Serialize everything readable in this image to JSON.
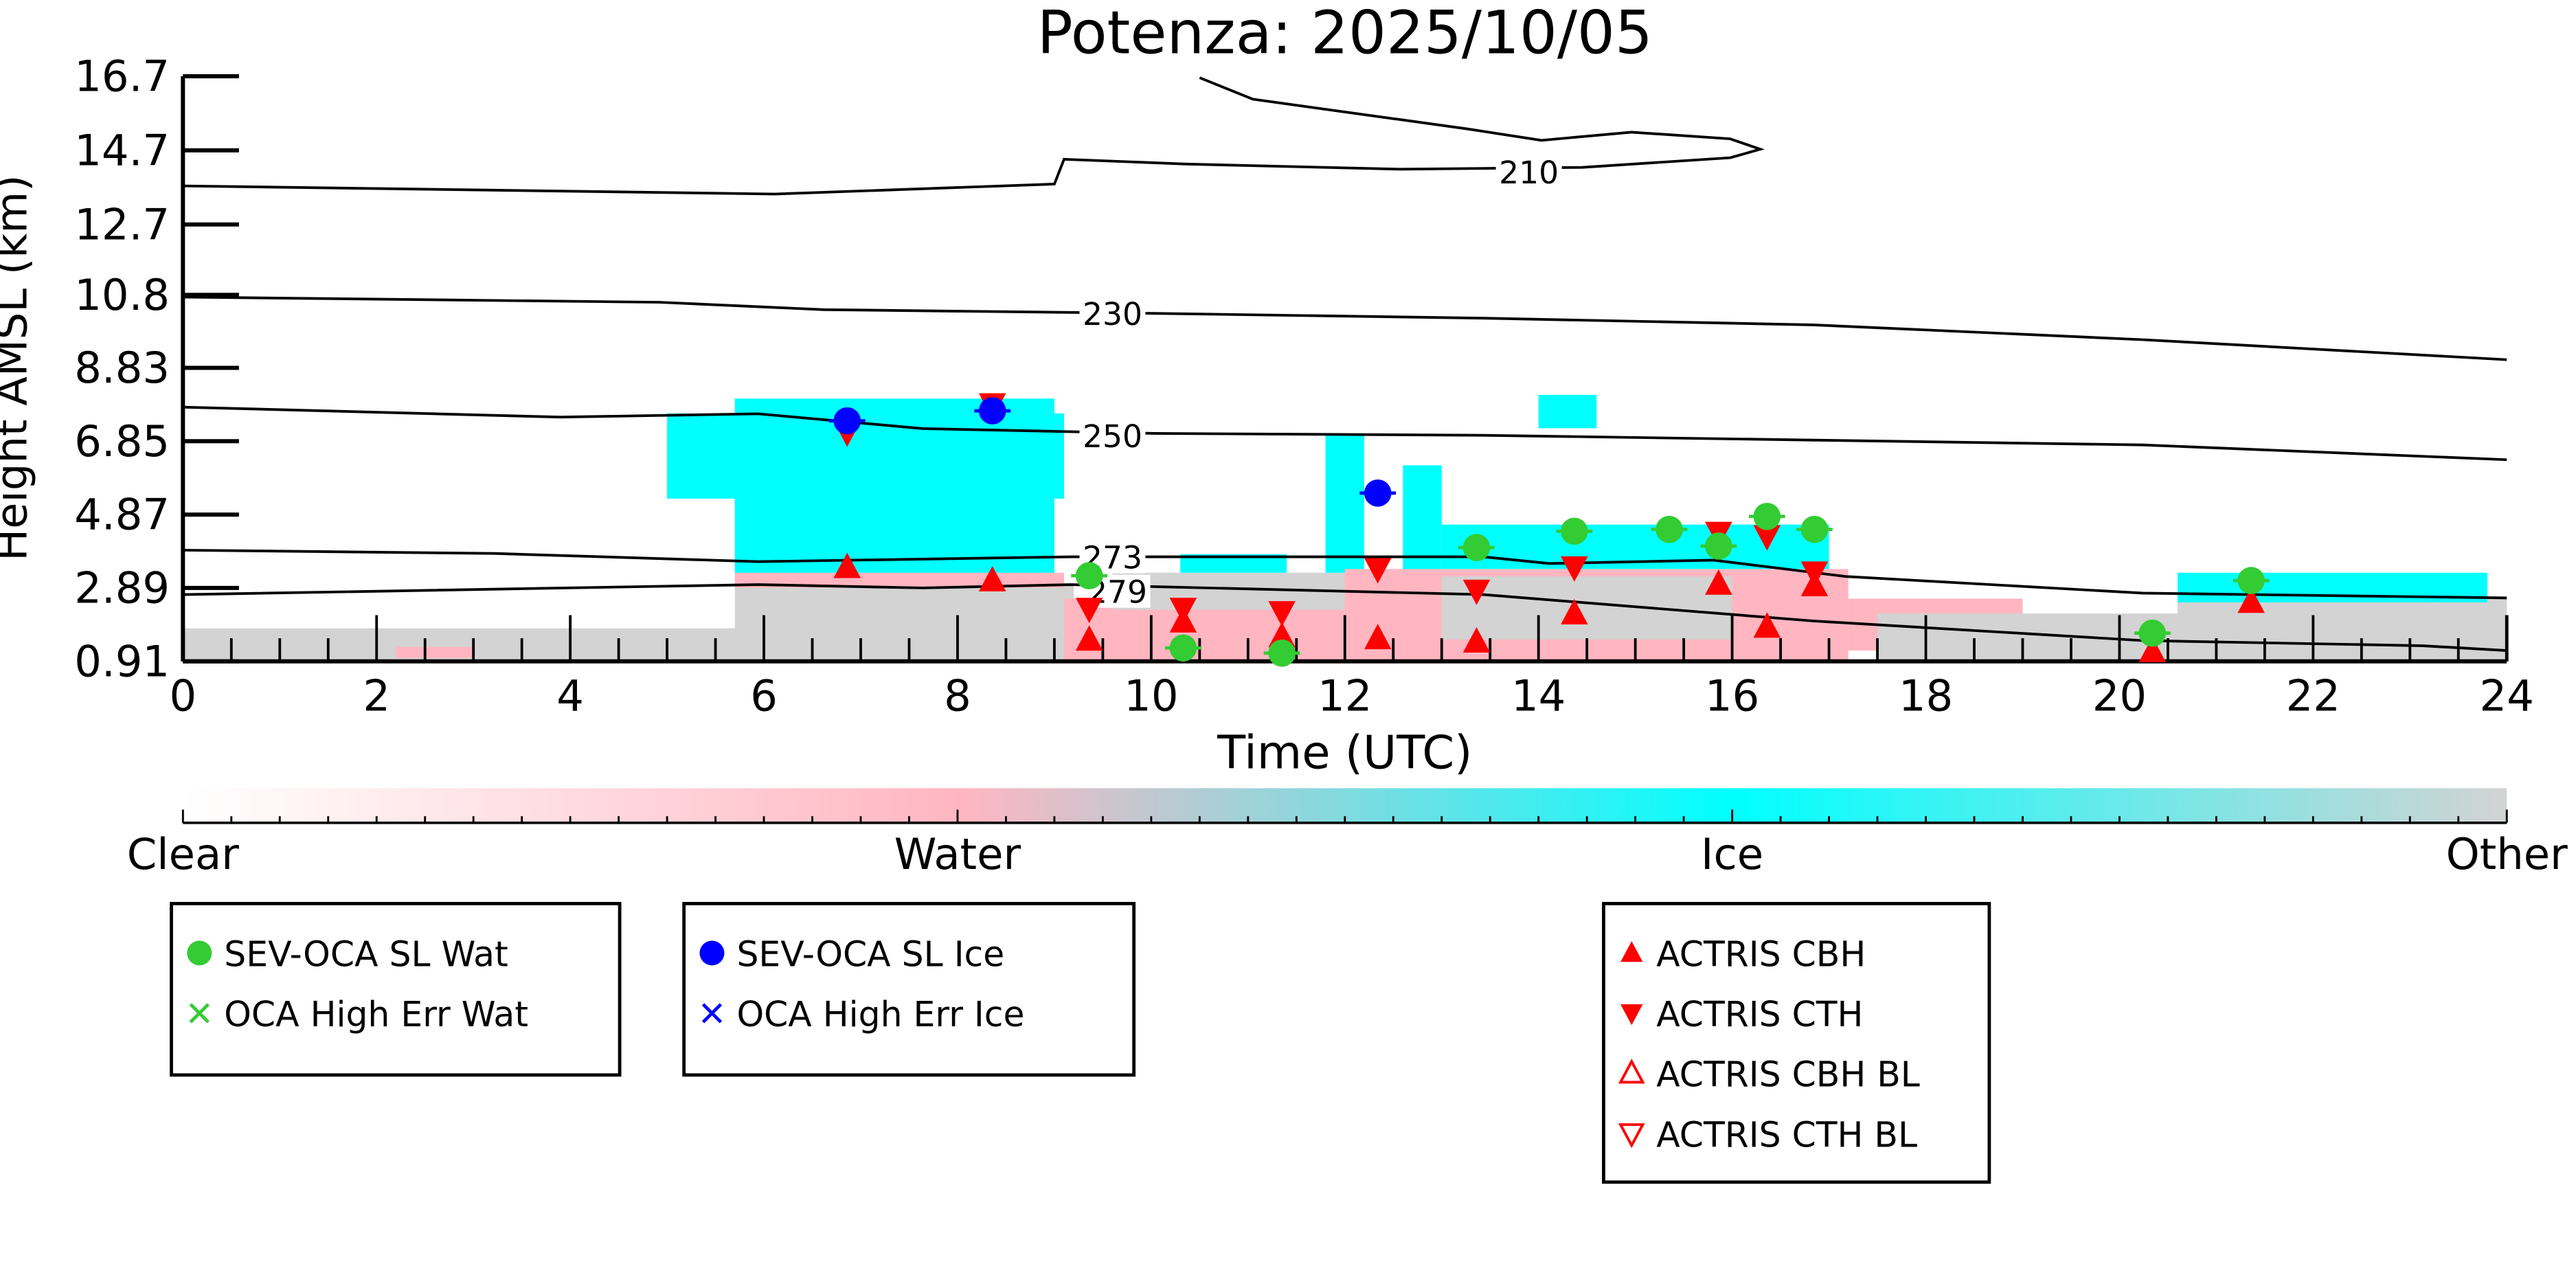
{
  "chart_data": {
    "type": "heatmap",
    "title": "Potenza: 2025/10/05",
    "xlabel": "Time (UTC)",
    "ylabel": "Height AMSL (km)",
    "xlim": [
      0,
      24
    ],
    "ylim": [
      0.91,
      16.7
    ],
    "xticks": [
      0,
      2,
      4,
      6,
      8,
      10,
      12,
      14,
      16,
      18,
      20,
      22,
      24
    ],
    "yticks": [
      "0.91",
      "2.89",
      "4.87",
      "6.85",
      "8.83",
      "10.8",
      "12.7",
      "14.7",
      "16.7"
    ],
    "colors": {
      "clear": "#ffffff",
      "water": "#ffb6c1",
      "ice": "#00ffff",
      "other": "#d3d3d3",
      "sev_wat": "#33cc33",
      "sev_ice": "#0000ff",
      "actris": "#ff0000"
    },
    "colorbar": {
      "labels": [
        "Clear",
        "Water",
        "Ice",
        "Other"
      ]
    },
    "cloud_regions": [
      {
        "class": "other",
        "t": [
          0,
          5.9
        ],
        "h": [
          0.91,
          1.8
        ]
      },
      {
        "class": "water",
        "t": [
          2.2,
          3.0
        ],
        "h": [
          1.0,
          1.3
        ]
      },
      {
        "class": "other",
        "t": [
          5.7,
          9.2
        ],
        "h": [
          0.91,
          3.0
        ]
      },
      {
        "class": "ice",
        "t": [
          5.0,
          9.1
        ],
        "h": [
          5.3,
          7.6
        ]
      },
      {
        "class": "ice",
        "t": [
          5.7,
          9.0
        ],
        "h": [
          3.0,
          8.0
        ]
      },
      {
        "class": "water",
        "t": [
          5.7,
          9.1
        ],
        "h": [
          2.9,
          3.3
        ]
      },
      {
        "class": "water",
        "t": [
          9.1,
          12.0
        ],
        "h": [
          0.91,
          2.6
        ]
      },
      {
        "class": "other",
        "t": [
          9.6,
          13.0
        ],
        "h": [
          2.3,
          3.3
        ]
      },
      {
        "class": "ice",
        "t": [
          10.3,
          11.4
        ],
        "h": [
          3.3,
          3.8
        ]
      },
      {
        "class": "ice",
        "t": [
          11.8,
          12.2
        ],
        "h": [
          3.3,
          7.0
        ]
      },
      {
        "class": "ice",
        "t": [
          12.6,
          13.0
        ],
        "h": [
          3.2,
          6.2
        ]
      },
      {
        "class": "water",
        "t": [
          12.0,
          17.2
        ],
        "h": [
          0.91,
          3.4
        ]
      },
      {
        "class": "other",
        "t": [
          13.0,
          16.0
        ],
        "h": [
          1.5,
          3.2
        ]
      },
      {
        "class": "ice",
        "t": [
          13.0,
          17.0
        ],
        "h": [
          3.4,
          4.6
        ]
      },
      {
        "class": "ice",
        "t": [
          14.0,
          14.6
        ],
        "h": [
          7.2,
          8.1
        ]
      },
      {
        "class": "water",
        "t": [
          17.2,
          19.0
        ],
        "h": [
          1.2,
          2.6
        ]
      },
      {
        "class": "other",
        "t": [
          17.5,
          20.8
        ],
        "h": [
          0.91,
          2.2
        ]
      },
      {
        "class": "other",
        "t": [
          20.6,
          24.0
        ],
        "h": [
          0.91,
          2.6
        ]
      },
      {
        "class": "ice",
        "t": [
          20.6,
          23.8
        ],
        "h": [
          2.5,
          3.3
        ]
      }
    ],
    "contours": [
      {
        "level": "210",
        "label_at": [
          13.9,
          14.12
        ],
        "points": [
          [
            0,
            13.74
          ],
          [
            6.11,
            13.52
          ],
          [
            9.0,
            13.79
          ],
          [
            9.1,
            14.46
          ],
          [
            10.36,
            14.33
          ],
          [
            12.58,
            14.19
          ],
          [
            14.45,
            14.24
          ],
          [
            15.98,
            14.5
          ],
          [
            16.29,
            14.73
          ],
          [
            15.98,
            15.01
          ],
          [
            14.96,
            15.19
          ],
          [
            14.03,
            14.97
          ],
          [
            13.26,
            15.28
          ],
          [
            11.05,
            16.08
          ],
          [
            10.5,
            16.66
          ]
        ]
      },
      {
        "level": "230",
        "label_at": [
          9.6,
          10.3
        ],
        "points": [
          [
            0,
            10.74
          ],
          [
            4.92,
            10.6
          ],
          [
            6.62,
            10.4
          ],
          [
            10.03,
            10.3
          ],
          [
            13.43,
            10.17
          ],
          [
            16.83,
            9.99
          ],
          [
            20.24,
            9.59
          ],
          [
            24,
            9.05
          ]
        ]
      },
      {
        "level": "250",
        "label_at": [
          9.6,
          7.0
        ],
        "points": [
          [
            0,
            7.77
          ],
          [
            3.9,
            7.5
          ],
          [
            5.94,
            7.59
          ],
          [
            7.64,
            7.19
          ],
          [
            10.03,
            7.06
          ],
          [
            13.43,
            7.01
          ],
          [
            16.83,
            6.88
          ],
          [
            20.24,
            6.75
          ],
          [
            24,
            6.35
          ]
        ]
      },
      {
        "level": "273",
        "label_at": [
          9.6,
          3.73
        ],
        "points": [
          [
            0,
            3.91
          ],
          [
            3.22,
            3.82
          ],
          [
            5.94,
            3.6
          ],
          [
            9.17,
            3.73
          ],
          [
            13.43,
            3.73
          ],
          [
            14.11,
            3.55
          ],
          [
            15.81,
            3.64
          ],
          [
            17.17,
            3.2
          ],
          [
            20.24,
            2.75
          ],
          [
            24,
            2.62
          ]
        ]
      },
      {
        "level": "279",
        "label_at": [
          9.65,
          2.8
        ],
        "points": [
          [
            0,
            2.71
          ],
          [
            5.94,
            2.98
          ],
          [
            7.64,
            2.89
          ],
          [
            9.17,
            2.98
          ],
          [
            13.43,
            2.71
          ],
          [
            16.83,
            2.0
          ],
          [
            20.24,
            1.47
          ],
          [
            23.13,
            1.33
          ],
          [
            24,
            1.2
          ]
        ]
      }
    ],
    "series": [
      {
        "name": "SEV-OCA SL Wat",
        "marker": "circle",
        "color": "#33cc33",
        "points": [
          [
            9.36,
            3.22
          ],
          [
            10.33,
            1.27
          ],
          [
            11.35,
            1.13
          ],
          [
            13.36,
            3.98
          ],
          [
            14.37,
            4.42
          ],
          [
            15.35,
            4.47
          ],
          [
            15.86,
            4.02
          ],
          [
            16.36,
            4.82
          ],
          [
            16.85,
            4.47
          ],
          [
            20.34,
            1.67
          ],
          [
            21.36,
            3.09
          ]
        ]
      },
      {
        "name": "OCA High Err Wat",
        "marker": "x",
        "color": "#33cc33",
        "points": []
      },
      {
        "name": "SEV-OCA SL Ice",
        "marker": "circle",
        "color": "#0000ff",
        "points": [
          [
            6.86,
            7.4
          ],
          [
            8.36,
            7.67
          ],
          [
            12.34,
            5.45
          ]
        ]
      },
      {
        "name": "OCA High Err Ice",
        "marker": "x",
        "color": "#0000ff",
        "points": []
      },
      {
        "name": "ACTRIS CBH",
        "marker": "triangle-up",
        "color": "#ff0000",
        "points": [
          [
            6.86,
            3.45
          ],
          [
            8.36,
            3.09
          ],
          [
            9.36,
            1.49
          ],
          [
            10.33,
            1.98
          ],
          [
            11.35,
            1.58
          ],
          [
            12.34,
            1.53
          ],
          [
            13.36,
            1.44
          ],
          [
            14.37,
            2.2
          ],
          [
            15.86,
            3.0
          ],
          [
            16.36,
            1.84
          ],
          [
            16.85,
            2.96
          ],
          [
            20.34,
            1.18
          ],
          [
            21.36,
            2.51
          ]
        ]
      },
      {
        "name": "ACTRIS CTH",
        "marker": "triangle-down",
        "color": "#ff0000",
        "points": [
          [
            6.86,
            7.09
          ],
          [
            8.36,
            7.85
          ],
          [
            9.36,
            2.33
          ],
          [
            10.33,
            2.33
          ],
          [
            11.35,
            2.24
          ],
          [
            12.34,
            3.4
          ],
          [
            13.36,
            2.82
          ],
          [
            14.37,
            3.45
          ],
          [
            15.86,
            4.38
          ],
          [
            16.36,
            4.29
          ],
          [
            16.85,
            3.31
          ]
        ]
      },
      {
        "name": "ACTRIS CBH BL",
        "marker": "triangle-up-open",
        "color": "#ff0000",
        "points": []
      },
      {
        "name": "ACTRIS CTH BL",
        "marker": "triangle-down-open",
        "color": "#ff0000",
        "points": []
      }
    ],
    "legend_groups": [
      [
        0,
        1
      ],
      [
        2,
        3
      ],
      [
        4,
        5,
        6,
        7
      ]
    ],
    "legend_placement": "bottom"
  }
}
